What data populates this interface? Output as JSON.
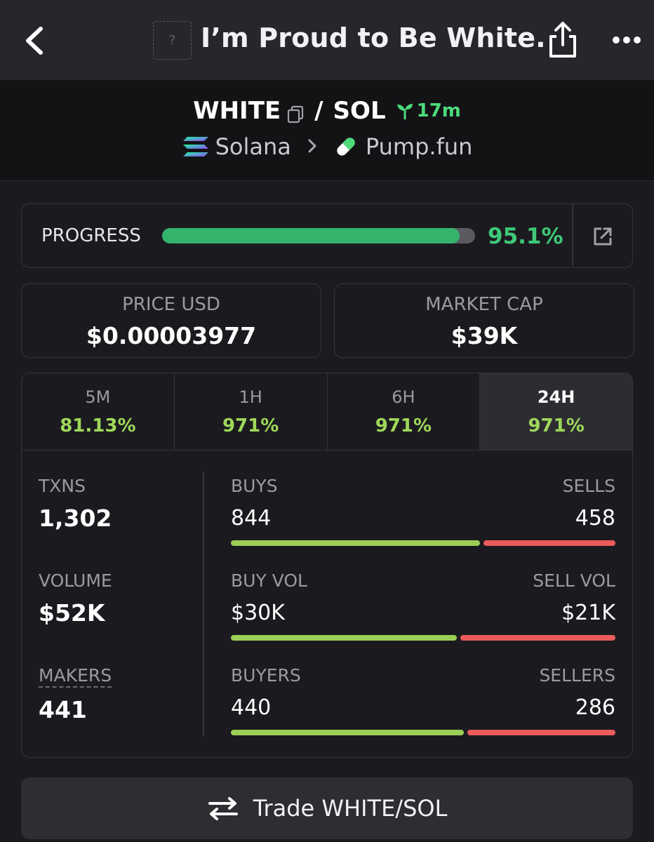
{
  "header": {
    "title": "I’m Proud to Be White.",
    "token_image_placeholder": "?"
  },
  "pair": {
    "base": "WHITE",
    "separator": "/",
    "quote": "SOL",
    "age": "17m",
    "chain": "Solana",
    "dex": "Pump.fun"
  },
  "progress": {
    "label": "PROGRESS",
    "value_text": "95.1%",
    "fraction": 0.951
  },
  "stats": {
    "price_label": "PRICE USD",
    "price_value": "$0.00003977",
    "mcap_label": "MARKET CAP",
    "mcap_value": "$39K"
  },
  "tabs": [
    {
      "label": "5M",
      "value": "81.13%"
    },
    {
      "label": "1H",
      "value": "971%"
    },
    {
      "label": "6H",
      "value": "971%"
    },
    {
      "label": "24H",
      "value": "971%",
      "active": true
    }
  ],
  "left_stats": {
    "txns_label": "TXNS",
    "txns_value": "1,302",
    "volume_label": "VOLUME",
    "volume_value": "$52K",
    "makers_label": "MAKERS",
    "makers_value": "441"
  },
  "splits": {
    "buys_label": "BUYS",
    "sells_label": "SELLS",
    "buys_value": "844",
    "sells_value": "458",
    "buy_vol_label": "BUY VOL",
    "sell_vol_label": "SELL VOL",
    "buy_vol_value": "$30K",
    "sell_vol_value": "$21K",
    "buyers_label": "BUYERS",
    "sellers_label": "SELLERS",
    "buyers_value": "440",
    "sellers_value": "286",
    "buys_share": 0.648,
    "buy_vol_share": 0.588,
    "buyers_share": 0.606
  },
  "trade_button": {
    "label": "Trade WHITE/SOL"
  },
  "colors": {
    "green": "#9ccf55",
    "red": "#ea5b5b",
    "progress_green": "#33b36b"
  }
}
